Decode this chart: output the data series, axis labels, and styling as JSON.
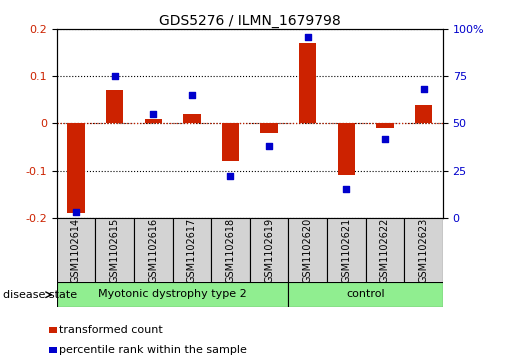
{
  "title": "GDS5276 / ILMN_1679798",
  "samples": [
    "GSM1102614",
    "GSM1102615",
    "GSM1102616",
    "GSM1102617",
    "GSM1102618",
    "GSM1102619",
    "GSM1102620",
    "GSM1102621",
    "GSM1102622",
    "GSM1102623"
  ],
  "red_values": [
    -0.19,
    0.07,
    0.01,
    0.02,
    -0.08,
    -0.02,
    0.17,
    -0.11,
    -0.01,
    0.04
  ],
  "blue_values": [
    3,
    75,
    55,
    65,
    22,
    38,
    96,
    15,
    42,
    68
  ],
  "group1_label": "Myotonic dystrophy type 2",
  "group1_count": 6,
  "group2_label": "control",
  "group2_count": 4,
  "group_color": "#90EE90",
  "disease_state_label": "disease state",
  "ylim_left": [
    -0.2,
    0.2
  ],
  "ylim_right": [
    0,
    100
  ],
  "yticks_left": [
    -0.2,
    -0.1,
    0.0,
    0.1,
    0.2
  ],
  "yticks_right": [
    0,
    25,
    50,
    75,
    100
  ],
  "ytick_labels_right": [
    "0",
    "25",
    "50",
    "75",
    "100%"
  ],
  "red_color": "#CC2200",
  "blue_color": "#0000CC",
  "bar_width": 0.45,
  "legend_red": "transformed count",
  "legend_blue": "percentile rank within the sample",
  "sample_box_color": "#D3D3D3",
  "title_fontsize": 10,
  "tick_fontsize": 8,
  "label_fontsize": 7,
  "legend_fontsize": 8,
  "ds_fontsize": 8
}
